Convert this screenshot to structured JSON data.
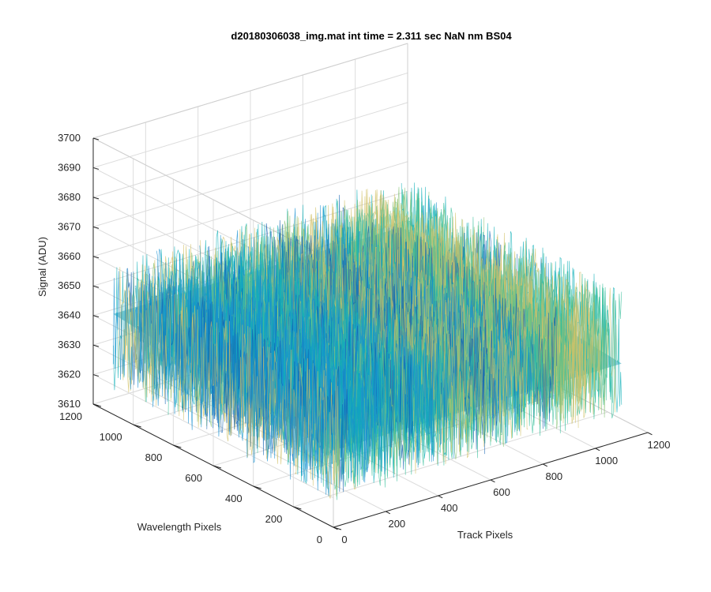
{
  "chart_data": {
    "type": "surface3d",
    "title": "d20180306038_img.mat int time = 2.311 sec  NaN nm BS04",
    "xlabel": "Track Pixels",
    "ylabel": "Wavelength Pixels",
    "zlabel": "Signal (ADU)",
    "xlim": [
      0,
      1200
    ],
    "ylim": [
      0,
      1200
    ],
    "zlim": [
      3610,
      3700
    ],
    "xticks": [
      "0",
      "200",
      "400",
      "600",
      "800",
      "1000",
      "1200"
    ],
    "yticks": [
      "0",
      "200",
      "400",
      "600",
      "800",
      "1000",
      "1200"
    ],
    "zticks": [
      "3610",
      "3620",
      "3630",
      "3640",
      "3650",
      "3660",
      "3670",
      "3680",
      "3690",
      "3700"
    ],
    "surface": {
      "x_range": [
        0,
        1100
      ],
      "y_range": [
        0,
        1100
      ],
      "mean_signal": 3640,
      "noise_min": 3615,
      "noise_max": 3690,
      "colormap": "parula",
      "colors": [
        "#0f5fb0",
        "#1790d2",
        "#10b0b8",
        "#33be98",
        "#8ac47a",
        "#d2c268"
      ]
    },
    "grid": true,
    "view": "matlab-default-3d"
  }
}
